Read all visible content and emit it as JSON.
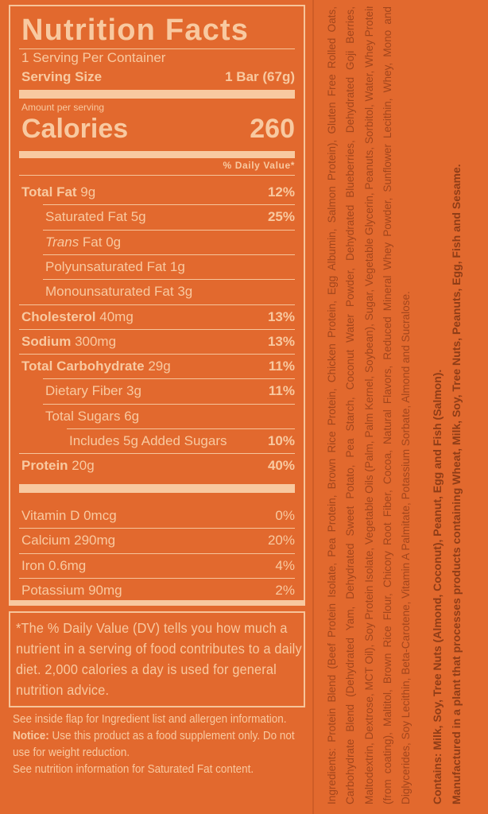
{
  "colors": {
    "background": "#e2692e",
    "label_text": "#f8c9a0",
    "ingredient_text": "#a3461c"
  },
  "label": {
    "title": "Nutrition Facts",
    "servings_per_container": "1 Serving Per Container",
    "serving_size_label": "Serving Size",
    "serving_size_value": "1 Bar (67g)",
    "amount_per_serving": "Amount per serving",
    "calories_label": "Calories",
    "calories_value": "260",
    "daily_value_header": "% Daily Value*",
    "nutrients": [
      {
        "bold": "Total Fat",
        "text": " 9g",
        "dv": "12%",
        "indent": 0
      },
      {
        "text": "Saturated Fat 5g",
        "dv": "25%",
        "indent": 1
      },
      {
        "italic": "Trans",
        "text": " Fat 0g",
        "dv": "",
        "indent": 1
      },
      {
        "text": "Polyunsaturated Fat 1g",
        "dv": "",
        "indent": 1
      },
      {
        "text": "Monounsaturated Fat 3g",
        "dv": "",
        "indent": 1
      },
      {
        "bold": "Cholesterol",
        "text": " 40mg",
        "dv": "13%",
        "indent": 0
      },
      {
        "bold": "Sodium",
        "text": " 300mg",
        "dv": "13%",
        "indent": 0
      },
      {
        "bold": "Total Carbohydrate",
        "text": " 29g",
        "dv": "11%",
        "indent": 0
      },
      {
        "text": "Dietary Fiber 3g",
        "dv": "11%",
        "indent": 1
      },
      {
        "text": "Total Sugars 6g",
        "dv": "",
        "indent": 1
      },
      {
        "text": "Includes 5g Added Sugars",
        "dv": "10%",
        "indent": 2
      },
      {
        "bold": "Protein",
        "text": " 20g",
        "dv": "40%",
        "indent": 0
      }
    ],
    "vitamins": [
      {
        "text": "Vitamin D 0mcg",
        "dv": "0%"
      },
      {
        "text": "Calcium 290mg",
        "dv": "20%"
      },
      {
        "text": "Iron 0.6mg",
        "dv": "4%"
      },
      {
        "text": "Potassium 90mg",
        "dv": "2%"
      }
    ],
    "footnote": "*The % Daily Value (DV) tells you how much a nutrient in a serving of food contributes to a daily diet. 2,000 calories a day is used for general nutrition advice."
  },
  "notes": {
    "flap": "See inside flap for Ingredient list and allergen information.",
    "notice_label": "Notice:",
    "notice_text": " Use this product as a food supplement only. Do not use for weight reduction.",
    "saturated": "See nutrition information for Saturated Fat content."
  },
  "side_panel": {
    "ingredient_lines": [
      "Ingredients: Protein Blend (Beef Protein Isolate, Pea Protein, Brown Rice Protein, Chicken Protein, Egg Albumin, Salmon Protein), Gluten Free Rolled Oats,",
      "Carbohydrate Blend (Dehydrated Yam, Dehydrated Sweet Potato, Pea Starch, Coconut Water Powder, Dehydrated Blueberries, Dehydrated Goji Berries,",
      "Maltodextrin, Dextrose, MCT Oil), Soy Protein Isolate, Vegetable Oils (Palm, Palm Kernel, Soybean), Sugar, Vegetable Glycerin, Peanuts, Sorbitol, Water, Whey Protein",
      "(from coating), Maltitol, Brown Rice Flour, Chicory Root Fiber, Cocoa, Natural Flavors, Reduced Mineral Whey Powder, Sunflower Lecithin, Whey, Mono and",
      "Diglycerides, Soy Lecithin, Beta-Carotene, Vitamin A Palmitate, Potassium Sorbate, Almond and Sucralose."
    ],
    "contains": "Contains: Milk, Soy, Tree Nuts (Almond, Coconut), Peanut, Egg and Fish (Salmon).",
    "manufactured": "Manufactured in a plant that processes products containing Wheat, Milk, Soy, Tree Nuts, Peanuts, Egg, Fish and Sesame."
  }
}
